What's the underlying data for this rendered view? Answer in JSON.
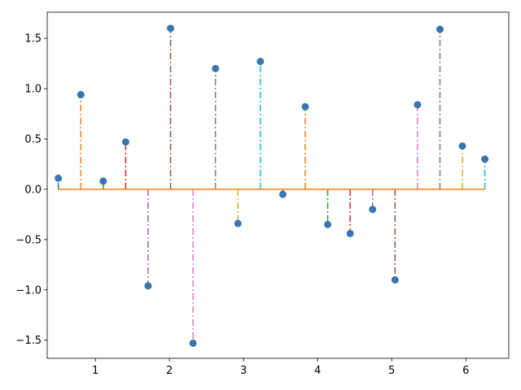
{
  "chart_data": {
    "type": "stem",
    "title": "",
    "xlabel": "",
    "ylabel": "",
    "xlim": [
      0.35,
      6.58
    ],
    "ylim": [
      -1.68,
      1.76
    ],
    "xticks": [
      1,
      2,
      3,
      4,
      5,
      6
    ],
    "yticks": [
      -1.5,
      -1.0,
      -0.5,
      0.0,
      0.5,
      1.0,
      1.5
    ],
    "xtick_labels": [
      "1",
      "2",
      "3",
      "4",
      "5",
      "6"
    ],
    "ytick_labels": [
      "−1.5",
      "−1.0",
      "−0.5",
      "0.0",
      "0.5",
      "1.0",
      "1.5"
    ],
    "baseline": 0,
    "grid": false,
    "marker_color": "#3b75af",
    "baseline_color": "#ff7f0e",
    "stem_colors": [
      "#1f77b4",
      "#ff7f0e",
      "#2ca02c",
      "#d62728",
      "#9467bd",
      "#8c564b",
      "#e377c2",
      "#7f7f7f",
      "#bcbd22",
      "#17becf"
    ],
    "x": [
      0.5,
      0.803,
      1.106,
      1.409,
      1.712,
      2.015,
      2.318,
      2.621,
      2.924,
      3.227,
      3.53,
      3.833,
      4.136,
      4.439,
      4.742,
      5.045,
      5.348,
      5.651,
      5.954,
      6.257
    ],
    "y": [
      0.11,
      0.94,
      0.08,
      0.47,
      -0.96,
      1.6,
      -1.53,
      1.2,
      -0.34,
      1.27,
      -0.05,
      0.82,
      -0.35,
      -0.44,
      -0.2,
      -0.9,
      0.84,
      1.59,
      0.43,
      0.3
    ]
  }
}
